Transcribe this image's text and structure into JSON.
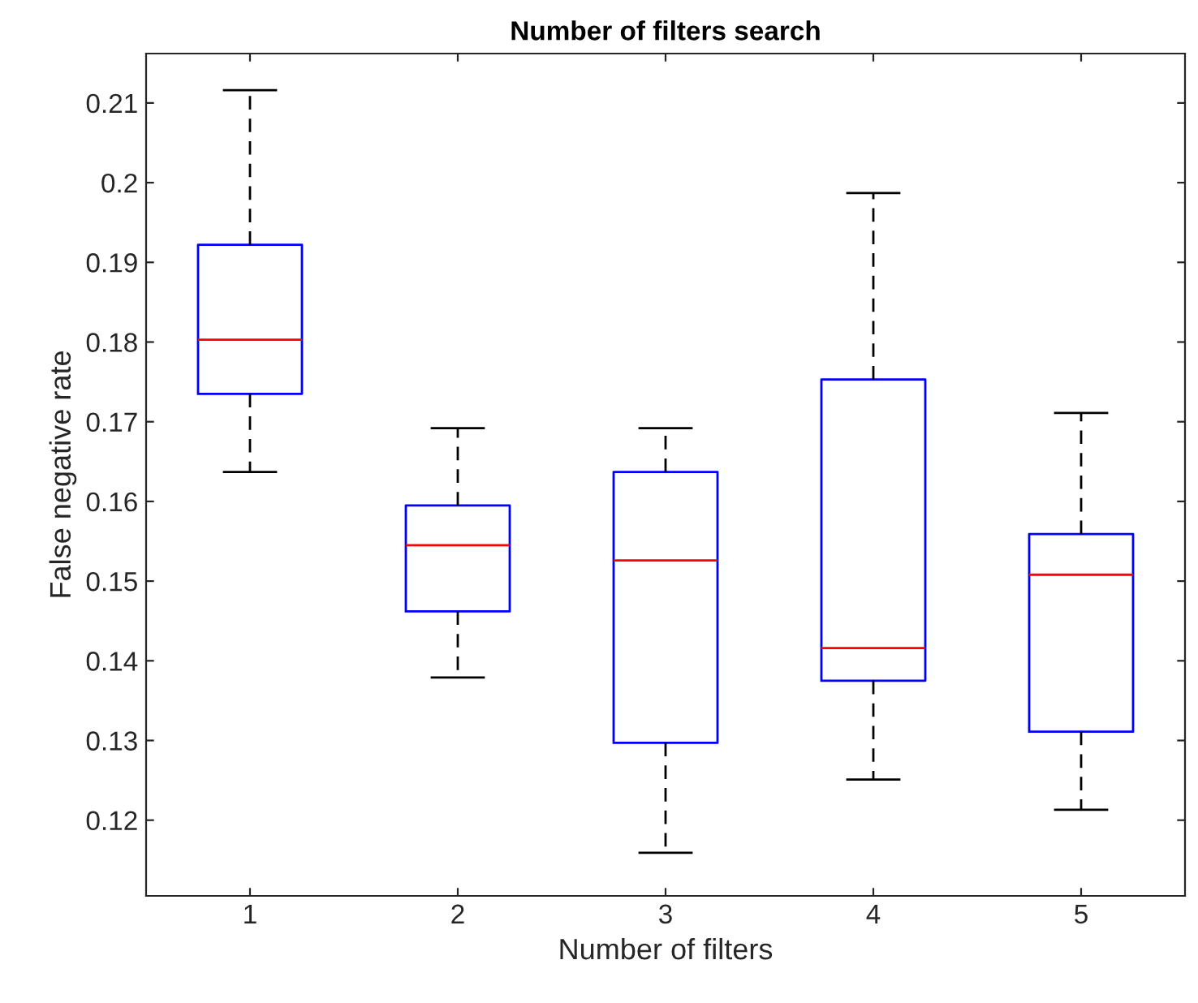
{
  "chart_data": {
    "type": "box",
    "title": "Number of filters search",
    "xlabel": "Number of filters",
    "ylabel": "False negative rate",
    "categories": [
      "1",
      "2",
      "3",
      "4",
      "5"
    ],
    "boxes": [
      {
        "low": 0.1637,
        "q1": 0.1735,
        "median": 0.1803,
        "q3": 0.1922,
        "high": 0.2116
      },
      {
        "low": 0.1379,
        "q1": 0.1462,
        "median": 0.1545,
        "q3": 0.1595,
        "high": 0.1692
      },
      {
        "low": 0.1159,
        "q1": 0.1297,
        "median": 0.1526,
        "q3": 0.1637,
        "high": 0.1692
      },
      {
        "low": 0.1251,
        "q1": 0.1375,
        "median": 0.1416,
        "q3": 0.1753,
        "high": 0.1987
      },
      {
        "low": 0.1213,
        "q1": 0.1311,
        "median": 0.1508,
        "q3": 0.1559,
        "high": 0.1711
      }
    ],
    "color": "#0000ff",
    "ylim": [
      0.1105,
      0.2162
    ],
    "yticks": [
      0.12,
      0.13,
      0.14,
      0.15,
      0.16,
      0.17,
      0.18,
      0.19,
      0.2,
      0.21
    ],
    "grid": false
  }
}
